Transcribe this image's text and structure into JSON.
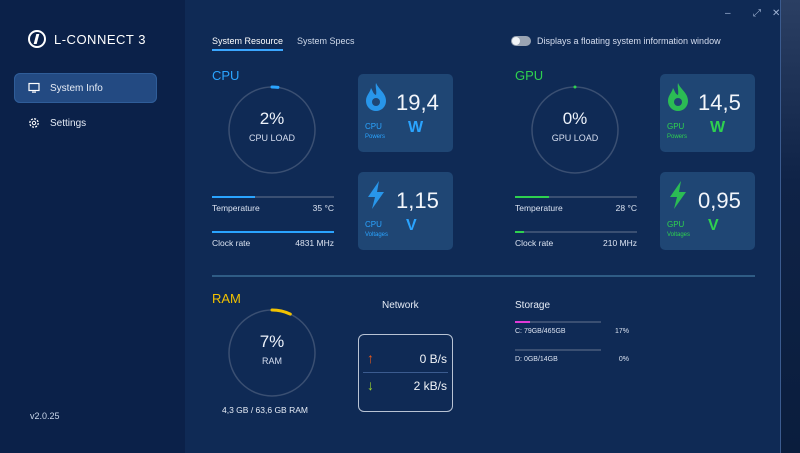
{
  "app": {
    "title": "L-CONNECT 3",
    "version": "v2.0.25"
  },
  "sidebar": {
    "items": [
      {
        "label": "System Info",
        "icon": "monitor-icon",
        "active": true
      },
      {
        "label": "Settings",
        "icon": "gear-icon",
        "active": false
      }
    ]
  },
  "tabs": [
    {
      "label": "System Resource",
      "active": true
    },
    {
      "label": "System Specs",
      "active": false
    }
  ],
  "floating_toggle": {
    "label": "Displays a floating system information window",
    "on": false
  },
  "cpu": {
    "title": "CPU",
    "load_value": "2%",
    "load_label": "CPU LOAD",
    "load_fraction": 0.02,
    "temperature": {
      "label": "Temperature",
      "value": "35 °C",
      "fraction": 0.35
    },
    "clock": {
      "label": "Clock rate",
      "value": "4831 MHz",
      "fraction": 1.0
    },
    "power": {
      "value": "19,4",
      "unit": "W",
      "name": "CPU",
      "sub": "Powers"
    },
    "voltage": {
      "value": "1,15",
      "unit": "V",
      "name": "CPU",
      "sub": "Voltages"
    }
  },
  "gpu": {
    "title": "GPU",
    "load_value": "0%",
    "load_label": "GPU LOAD",
    "load_fraction": 0.0,
    "temperature": {
      "label": "Temperature",
      "value": "28 °C",
      "fraction": 0.28
    },
    "clock": {
      "label": "Clock rate",
      "value": "210 MHz",
      "fraction": 0.07
    },
    "power": {
      "value": "14,5",
      "unit": "W",
      "name": "GPU",
      "sub": "Powers"
    },
    "voltage": {
      "value": "0,95",
      "unit": "V",
      "name": "GPU",
      "sub": "Voltages"
    }
  },
  "ram": {
    "title": "RAM",
    "load_value": "7%",
    "load_label": "RAM",
    "load_fraction": 0.07,
    "usage": "4,3 GB / 63,6 GB RAM"
  },
  "network": {
    "title": "Network",
    "upload": "0 B/s",
    "download": "2 kB/s"
  },
  "storage": {
    "title": "Storage",
    "drives": [
      {
        "label": "C: 79GB/465GB",
        "percent": "17%",
        "fraction": 0.17
      },
      {
        "label": "D: 0GB/14GB",
        "percent": "0%",
        "fraction": 0.0
      }
    ]
  },
  "colors": {
    "cpu": "#2aa4ff",
    "gpu": "#2ed14f",
    "ram": "#f2c200",
    "upload_arrow": "#e85a1b",
    "download_arrow": "#9ed62e",
    "storage": "#e03ad6"
  }
}
